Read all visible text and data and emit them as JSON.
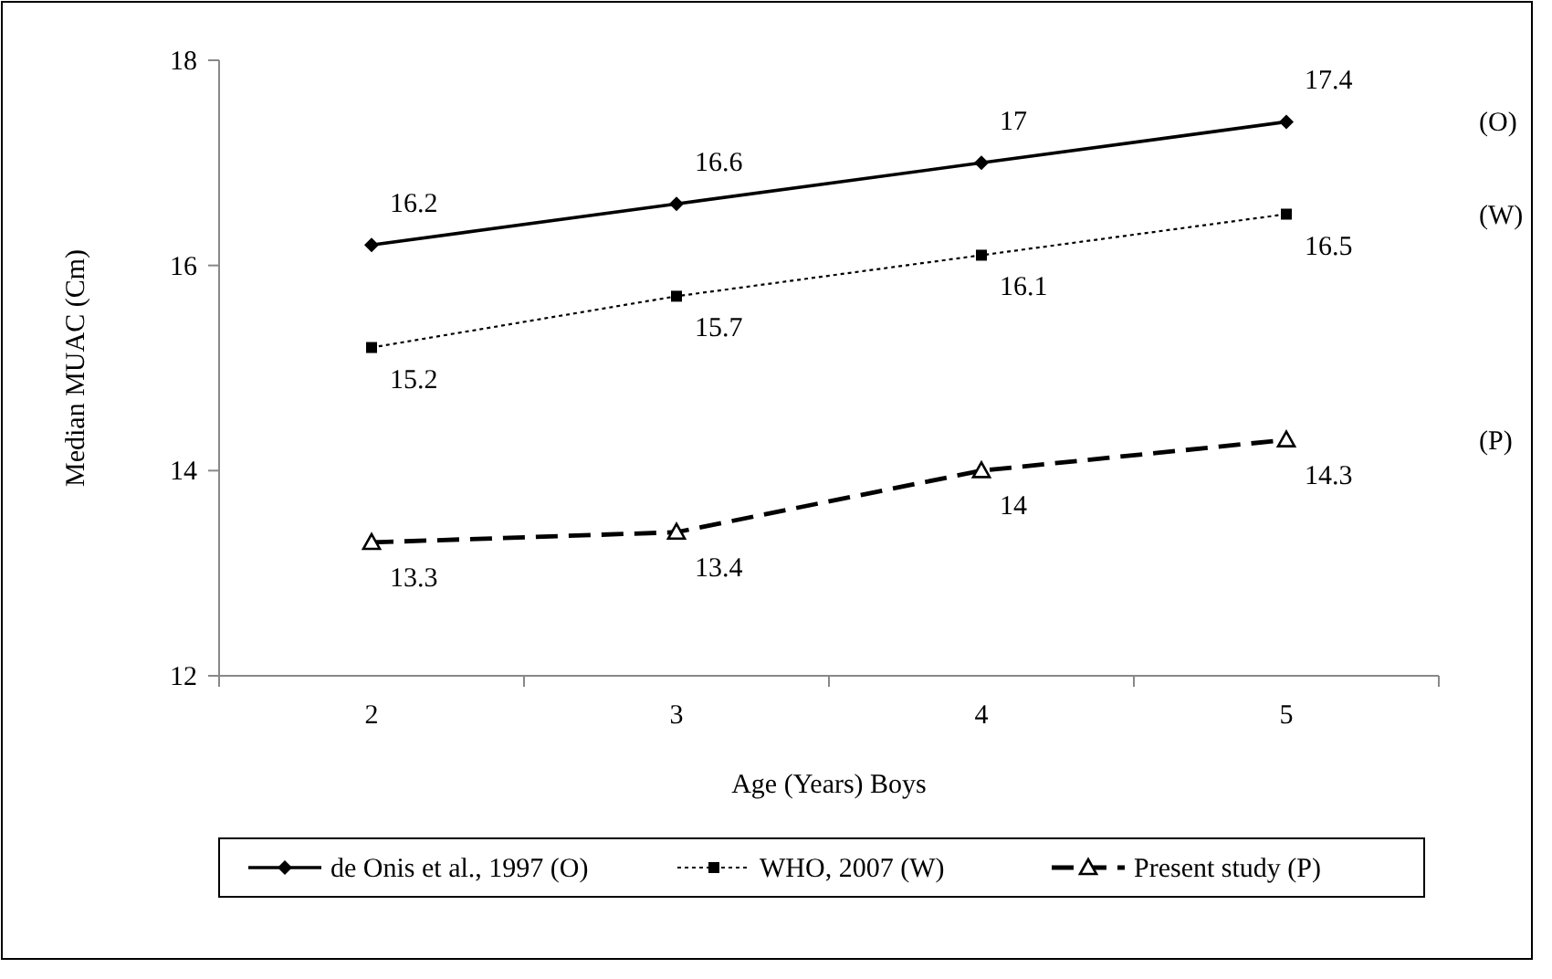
{
  "chart_data": {
    "type": "line",
    "xlabel": "Age (Years) Boys",
    "ylabel": "Median MUAC (Cm)",
    "categories": [
      "2",
      "3",
      "4",
      "5"
    ],
    "ylim": [
      12,
      18
    ],
    "yticks": [
      12,
      14,
      16,
      18
    ],
    "grid": false,
    "legend": "bottom",
    "data_labels": true,
    "series": [
      {
        "name": "de Onis et al., 1997 (O)",
        "color": "#000000",
        "values": [
          16.2,
          16.6,
          17,
          17.4
        ],
        "marker": "diamond",
        "line_style": "solid"
      },
      {
        "name": "WHO, 2007 (W)",
        "color": "#000000",
        "values": [
          15.2,
          15.7,
          16.1,
          16.5
        ],
        "marker": "square",
        "line_style": "dotted"
      },
      {
        "name": "Present study (P)",
        "color": "#000000",
        "values": [
          13.3,
          13.4,
          14,
          14.3
        ],
        "marker": "triangle",
        "line_style": "dashed"
      }
    ],
    "annotations": [
      "(O)",
      "(W)",
      "(P)"
    ]
  }
}
